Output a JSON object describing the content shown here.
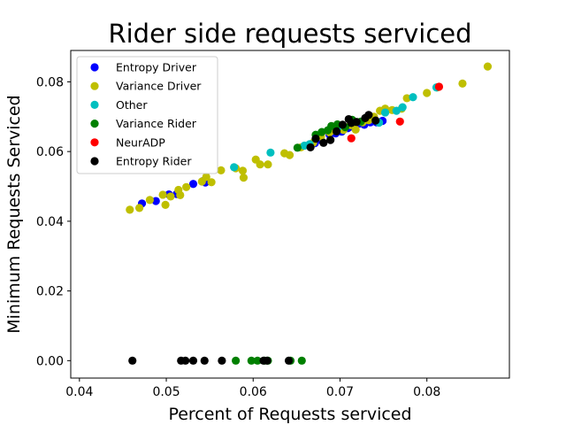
{
  "chart_data": {
    "type": "scatter",
    "title": "Rider side requests serviced",
    "xlabel": "Percent of Requests serviced",
    "ylabel": "Minimum Requests Serviced",
    "xlim": [
      0.039,
      0.0895
    ],
    "ylim": [
      -0.005,
      0.089
    ],
    "x_ticks": [
      "0.04",
      "0.05",
      "0.06",
      "0.07",
      "0.08"
    ],
    "x_tick_values": [
      0.04,
      0.05,
      0.06,
      0.07,
      0.08
    ],
    "y_ticks": [
      "0.00",
      "0.02",
      "0.04",
      "0.06",
      "0.08"
    ],
    "y_tick_values": [
      0.0,
      0.02,
      0.04,
      0.06,
      0.08
    ],
    "grid": false,
    "legend_position": "upper-left",
    "series": [
      {
        "name": "Entropy Driver",
        "color": "#0000ff",
        "points": [
          [
            0.0472,
            0.0451
          ],
          [
            0.0488,
            0.0458
          ],
          [
            0.0503,
            0.0477
          ],
          [
            0.0512,
            0.0478
          ],
          [
            0.0531,
            0.0507
          ],
          [
            0.0542,
            0.0515
          ],
          [
            0.0545,
            0.0511
          ],
          [
            0.0671,
            0.0624
          ],
          [
            0.0678,
            0.0633
          ],
          [
            0.0688,
            0.0648
          ],
          [
            0.0695,
            0.0652
          ],
          [
            0.0702,
            0.0657
          ],
          [
            0.0709,
            0.0667
          ],
          [
            0.0715,
            0.0671
          ],
          [
            0.0722,
            0.068
          ],
          [
            0.0728,
            0.0677
          ],
          [
            0.0735,
            0.0684
          ],
          [
            0.0742,
            0.0684
          ],
          [
            0.0749,
            0.0688
          ]
        ]
      },
      {
        "name": "Variance Driver",
        "color": "#bfbf00",
        "points": [
          [
            0.0458,
            0.0433
          ],
          [
            0.0469,
            0.0438
          ],
          [
            0.0481,
            0.0461
          ],
          [
            0.0496,
            0.0476
          ],
          [
            0.0499,
            0.0447
          ],
          [
            0.0505,
            0.0471
          ],
          [
            0.0514,
            0.049
          ],
          [
            0.0516,
            0.0475
          ],
          [
            0.0523,
            0.0498
          ],
          [
            0.0541,
            0.0514
          ],
          [
            0.0546,
            0.0527
          ],
          [
            0.0552,
            0.0512
          ],
          [
            0.0563,
            0.0546
          ],
          [
            0.058,
            0.0552
          ],
          [
            0.0588,
            0.0545
          ],
          [
            0.0589,
            0.0525
          ],
          [
            0.0603,
            0.0577
          ],
          [
            0.0608,
            0.0563
          ],
          [
            0.0617,
            0.0563
          ],
          [
            0.0636,
            0.0595
          ],
          [
            0.0642,
            0.059
          ],
          [
            0.0655,
            0.0612
          ],
          [
            0.0669,
            0.0625
          ],
          [
            0.0678,
            0.0643
          ],
          [
            0.0688,
            0.0655
          ],
          [
            0.0696,
            0.0668
          ],
          [
            0.0704,
            0.0662
          ],
          [
            0.0712,
            0.0676
          ],
          [
            0.0718,
            0.0663
          ],
          [
            0.0726,
            0.0684
          ],
          [
            0.0733,
            0.069
          ],
          [
            0.0739,
            0.07
          ],
          [
            0.0746,
            0.0717
          ],
          [
            0.0752,
            0.0723
          ],
          [
            0.076,
            0.0719
          ],
          [
            0.0771,
            0.0723
          ],
          [
            0.0777,
            0.0753
          ],
          [
            0.08,
            0.0768
          ],
          [
            0.0812,
            0.0784
          ],
          [
            0.0841,
            0.0795
          ],
          [
            0.087,
            0.0844
          ]
        ]
      },
      {
        "name": "Other",
        "color": "#00bfbf",
        "points": [
          [
            0.0578,
            0.0555
          ],
          [
            0.062,
            0.0597
          ],
          [
            0.0659,
            0.0617
          ],
          [
            0.0665,
            0.0621
          ],
          [
            0.0697,
            0.0668
          ],
          [
            0.0745,
            0.0683
          ],
          [
            0.0752,
            0.0712
          ],
          [
            0.0765,
            0.0717
          ],
          [
            0.0772,
            0.0727
          ],
          [
            0.0784,
            0.0756
          ],
          [
            0.0811,
            0.0784
          ]
        ]
      },
      {
        "name": "Variance Rider",
        "color": "#008000",
        "points": [
          [
            0.0651,
            0.0611
          ],
          [
            0.0672,
            0.0648
          ],
          [
            0.0679,
            0.0656
          ],
          [
            0.0686,
            0.0661
          ],
          [
            0.069,
            0.0673
          ],
          [
            0.0697,
            0.0678
          ],
          [
            0.0706,
            0.067
          ],
          [
            0.0714,
            0.0691
          ],
          [
            0.0724,
            0.0686
          ],
          [
            0.058,
            0.0
          ],
          [
            0.0598,
            0.0
          ],
          [
            0.0605,
            0.0
          ],
          [
            0.0613,
            0.0
          ],
          [
            0.0617,
            0.0
          ],
          [
            0.0643,
            0.0
          ],
          [
            0.0656,
            0.0
          ]
        ]
      },
      {
        "name": "NeurADP",
        "color": "#ff0000",
        "points": [
          [
            0.0713,
            0.0638
          ],
          [
            0.0769,
            0.0686
          ],
          [
            0.0814,
            0.0786
          ]
        ]
      },
      {
        "name": "Entropy Rider",
        "color": "#000000",
        "points": [
          [
            0.0666,
            0.0612
          ],
          [
            0.0672,
            0.0637
          ],
          [
            0.0681,
            0.0625
          ],
          [
            0.0689,
            0.0633
          ],
          [
            0.0696,
            0.0658
          ],
          [
            0.0703,
            0.0677
          ],
          [
            0.071,
            0.0693
          ],
          [
            0.0713,
            0.0682
          ],
          [
            0.0719,
            0.0685
          ],
          [
            0.0729,
            0.0696
          ],
          [
            0.0733,
            0.0705
          ],
          [
            0.0741,
            0.0689
          ],
          [
            0.0461,
            0.0
          ],
          [
            0.0517,
            0.0
          ],
          [
            0.0522,
            0.0
          ],
          [
            0.0531,
            0.0
          ],
          [
            0.0544,
            0.0
          ],
          [
            0.0564,
            0.0
          ],
          [
            0.0612,
            0.0
          ],
          [
            0.0616,
            0.0
          ],
          [
            0.0641,
            0.0
          ]
        ]
      }
    ]
  }
}
